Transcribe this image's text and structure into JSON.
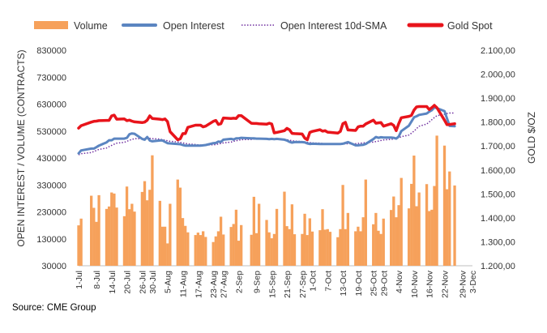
{
  "colors": {
    "volume": "#F6A15B",
    "open_interest": "#5B85C1",
    "sma": "#7030A0",
    "gold": "#E8141B",
    "text": "#333333"
  },
  "chart_data": {
    "type": "combo",
    "legend": {
      "placement": "top",
      "items": [
        {
          "key": "volume",
          "label": "Volume",
          "style": "bar"
        },
        {
          "key": "open_interest",
          "label": "Open Interest",
          "style": "line"
        },
        {
          "key": "sma",
          "label": "Open Interest 10d-SMA",
          "style": "dotted"
        },
        {
          "key": "gold",
          "label": "Gold Spot",
          "style": "thick-line"
        }
      ]
    },
    "y_left": {
      "label": "OPEN INTEREST / VOLUME (CONTRACTS)",
      "min": 30000,
      "max": 830000,
      "ticks": [
        30000,
        130000,
        230000,
        330000,
        430000,
        530000,
        630000,
        730000,
        830000
      ],
      "tick_labels": [
        "30000",
        "130000",
        "230000",
        "330000",
        "430000",
        "530000",
        "630000",
        "730000",
        "830000"
      ]
    },
    "y_right": {
      "label": "GOLD $/OZ",
      "min": 1200,
      "max": 2100,
      "ticks": [
        1200,
        1300,
        1400,
        1500,
        1600,
        1700,
        1800,
        1900,
        2000,
        2100
      ],
      "tick_labels": [
        "1.200,00",
        "1.300,00",
        "1.400,00",
        "1.500,00",
        "1.600,00",
        "1.700,00",
        "1.800,00",
        "1.900,00",
        "2.000,00",
        "2.100,00"
      ]
    },
    "x_axis": {
      "start": "2021-07-01",
      "end": "2021-12-03",
      "tick_labels": [
        "1-Jul",
        "8-Jul",
        "14-Jul",
        "20-Jul",
        "26-Jul",
        "30-Jul",
        "5-Aug",
        "11-Aug",
        "17-Aug",
        "23-Aug",
        "27-Aug",
        "2-Sep",
        "9-Sep",
        "15-Sep",
        "21-Sep",
        "27-Sep",
        "1-Oct",
        "7-Oct",
        "13-Oct",
        "19-Oct",
        "25-Oct",
        "29-Oct",
        "4-Nov",
        "10-Nov",
        "16-Nov",
        "22-Nov",
        "29-Nov",
        "3-Dec"
      ],
      "tick_dates": [
        "2021-07-01",
        "2021-07-08",
        "2021-07-14",
        "2021-07-20",
        "2021-07-26",
        "2021-07-30",
        "2021-08-05",
        "2021-08-11",
        "2021-08-17",
        "2021-08-23",
        "2021-08-27",
        "2021-09-02",
        "2021-09-09",
        "2021-09-15",
        "2021-09-21",
        "2021-09-27",
        "2021-10-01",
        "2021-10-07",
        "2021-10-13",
        "2021-10-19",
        "2021-10-25",
        "2021-10-29",
        "2021-11-04",
        "2021-11-10",
        "2021-11-16",
        "2021-11-22",
        "2021-11-29",
        "2021-12-03"
      ]
    },
    "dates": [
      "2021-07-01",
      "2021-07-02",
      "2021-07-06",
      "2021-07-07",
      "2021-07-08",
      "2021-07-09",
      "2021-07-12",
      "2021-07-13",
      "2021-07-14",
      "2021-07-15",
      "2021-07-16",
      "2021-07-19",
      "2021-07-20",
      "2021-07-21",
      "2021-07-22",
      "2021-07-23",
      "2021-07-26",
      "2021-07-27",
      "2021-07-28",
      "2021-07-29",
      "2021-07-30",
      "2021-08-02",
      "2021-08-03",
      "2021-08-04",
      "2021-08-05",
      "2021-08-06",
      "2021-08-09",
      "2021-08-10",
      "2021-08-11",
      "2021-08-12",
      "2021-08-13",
      "2021-08-16",
      "2021-08-17",
      "2021-08-18",
      "2021-08-19",
      "2021-08-20",
      "2021-08-23",
      "2021-08-24",
      "2021-08-25",
      "2021-08-26",
      "2021-08-27",
      "2021-08-30",
      "2021-08-31",
      "2021-09-01",
      "2021-09-02",
      "2021-09-03",
      "2021-09-07",
      "2021-09-08",
      "2021-09-09",
      "2021-09-10",
      "2021-09-13",
      "2021-09-14",
      "2021-09-15",
      "2021-09-16",
      "2021-09-17",
      "2021-09-20",
      "2021-09-21",
      "2021-09-22",
      "2021-09-23",
      "2021-09-24",
      "2021-09-27",
      "2021-09-28",
      "2021-09-29",
      "2021-09-30",
      "2021-10-01",
      "2021-10-04",
      "2021-10-05",
      "2021-10-06",
      "2021-10-07",
      "2021-10-08",
      "2021-10-11",
      "2021-10-12",
      "2021-10-13",
      "2021-10-14",
      "2021-10-15",
      "2021-10-18",
      "2021-10-19",
      "2021-10-20",
      "2021-10-21",
      "2021-10-22",
      "2021-10-25",
      "2021-10-26",
      "2021-10-27",
      "2021-10-28",
      "2021-10-29",
      "2021-11-01",
      "2021-11-02",
      "2021-11-03",
      "2021-11-04",
      "2021-11-05",
      "2021-11-08",
      "2021-11-09",
      "2021-11-10",
      "2021-11-11",
      "2021-11-12",
      "2021-11-15",
      "2021-11-16",
      "2021-11-17",
      "2021-11-18",
      "2021-11-19",
      "2021-11-22",
      "2021-11-23",
      "2021-11-24",
      "2021-11-26"
    ],
    "volume": [
      180000,
      205000,
      290000,
      245000,
      193000,
      292000,
      241000,
      250000,
      302000,
      298000,
      246000,
      214000,
      324000,
      240000,
      260000,
      231000,
      304000,
      344000,
      273000,
      312000,
      440000,
      271000,
      175000,
      175000,
      113000,
      260000,
      350000,
      320000,
      207000,
      178000,
      154000,
      144000,
      153000,
      144000,
      158000,
      137000,
      118000,
      139000,
      158000,
      212000,
      146000,
      174000,
      185000,
      238000,
      123000,
      181000,
      145000,
      286000,
      151000,
      260000,
      200000,
      154000,
      132000,
      148000,
      241000,
      305000,
      177000,
      166000,
      258000,
      147000,
      148000,
      223000,
      144000,
      206000,
      157000,
      162000,
      240000,
      164000,
      166000,
      156000,
      136000,
      166000,
      330000,
      166000,
      226000,
      158000,
      175000,
      158000,
      210000,
      350000,
      184000,
      226000,
      160000,
      148000,
      205000,
      237000,
      287000,
      210000,
      255000,
      356000,
      243000,
      334000,
      439000,
      251000,
      302000,
      333000,
      233000,
      238000,
      326000,
      513000,
      476000,
      314000,
      380000,
      328000
    ],
    "open_interest": [
      447000,
      458000,
      465000,
      465000,
      470000,
      476000,
      488000,
      496000,
      496000,
      502000,
      502000,
      502000,
      505000,
      518000,
      521000,
      520000,
      501000,
      498000,
      508000,
      495000,
      492000,
      495000,
      495000,
      490000,
      485000,
      484000,
      482000,
      481000,
      478000,
      476000,
      476000,
      476000,
      476000,
      476000,
      477000,
      478000,
      485000,
      486000,
      491000,
      490000,
      498000,
      501000,
      499000,
      503000,
      503000,
      505000,
      503000,
      503000,
      502000,
      502000,
      501000,
      500000,
      501000,
      500000,
      501000,
      498000,
      495000,
      490000,
      487000,
      489000,
      489000,
      488000,
      484000,
      482000,
      483000,
      482000,
      482000,
      482000,
      482000,
      482000,
      482000,
      482000,
      483000,
      486000,
      489000,
      477000,
      477000,
      478000,
      479000,
      482000,
      500000,
      508000,
      505000,
      507000,
      506000,
      506000,
      505000,
      502000,
      510000,
      530000,
      550000,
      565000,
      581000,
      585000,
      590000,
      595000,
      602000,
      607000,
      618000,
      615000,
      604000,
      577000,
      549000,
      548000
    ],
    "sma": [
      442000,
      446000,
      450000,
      454000,
      458000,
      462000,
      467000,
      472000,
      477000,
      481000,
      485000,
      488000,
      492000,
      496000,
      499000,
      502000,
      502000,
      502000,
      503000,
      503000,
      502000,
      500000,
      498000,
      496000,
      494000,
      492000,
      490000,
      488000,
      486000,
      484000,
      482000,
      480000,
      479000,
      478000,
      478000,
      478000,
      479000,
      480000,
      482000,
      484000,
      486000,
      489000,
      492000,
      494000,
      496000,
      498000,
      499000,
      500000,
      501000,
      501000,
      501000,
      501000,
      501000,
      500000,
      500000,
      499000,
      498000,
      496000,
      494000,
      493000,
      491000,
      490000,
      488000,
      487000,
      486000,
      485000,
      484000,
      483000,
      483000,
      483000,
      482000,
      482000,
      482000,
      482000,
      483000,
      483000,
      484000,
      485000,
      486000,
      487000,
      489000,
      491000,
      493000,
      495000,
      497000,
      499000,
      501000,
      502000,
      505000,
      509000,
      515000,
      522000,
      530000,
      539000,
      548000,
      556000,
      564000,
      572000,
      580000,
      587000,
      592000,
      595000,
      597000,
      597000
    ],
    "gold": [
      1775,
      1785,
      1800,
      1803,
      1804,
      1806,
      1807,
      1807,
      1826,
      1829,
      1812,
      1813,
      1806,
      1808,
      1804,
      1801,
      1798,
      1800,
      1808,
      1826,
      1815,
      1812,
      1810,
      1813,
      1802,
      1760,
      1726,
      1730,
      1752,
      1752,
      1778,
      1787,
      1787,
      1787,
      1780,
      1783,
      1803,
      1807,
      1790,
      1793,
      1817,
      1815,
      1816,
      1815,
      1827,
      1827,
      1795,
      1794,
      1794,
      1793,
      1791,
      1795,
      1792,
      1755,
      1757,
      1764,
      1774,
      1768,
      1753,
      1752,
      1750,
      1733,
      1726,
      1757,
      1761,
      1768,
      1762,
      1764,
      1758,
      1757,
      1754,
      1761,
      1793,
      1799,
      1767,
      1765,
      1780,
      1783,
      1783,
      1792,
      1808,
      1795,
      1797,
      1798,
      1783,
      1793,
      1786,
      1764,
      1794,
      1818,
      1824,
      1828,
      1850,
      1863,
      1865,
      1865,
      1852,
      1860,
      1870,
      1860,
      1808,
      1789,
      1790,
      1793
    ]
  },
  "source_text": "Source: CME Group"
}
